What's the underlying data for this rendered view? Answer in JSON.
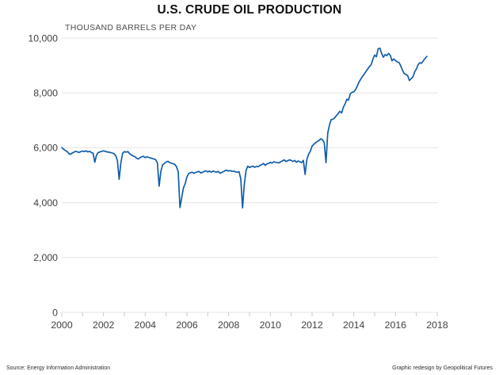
{
  "title": "U.S. CRUDE OIL PRODUCTION",
  "footer": {
    "source": "Source: Energy Information Administration",
    "credit": "Graphic redesign by Geopolitical Futures"
  },
  "chart_data": {
    "type": "line",
    "title": "U.S. CRUDE OIL PRODUCTION",
    "ylabel": "THOUSAND BARRELS PER DAY",
    "xlabel": "",
    "xlim": [
      2000,
      2018
    ],
    "ylim": [
      0,
      10000
    ],
    "grid": "horizontal",
    "legend_position": "none",
    "line_color": "#0F5DAB",
    "grid_color": "#e4e4e4",
    "tick_color": "#c9c9c9",
    "label_color": "#404040",
    "x_tick_labels": [
      {
        "year": 2000,
        "label": "2000"
      },
      {
        "year": 2002,
        "label": "2002"
      },
      {
        "year": 2004,
        "label": "2004"
      },
      {
        "year": 2006,
        "label": "2006"
      },
      {
        "year": 2008,
        "label": "2008"
      },
      {
        "year": 2010,
        "label": "2010"
      },
      {
        "year": 2012,
        "label": "2012"
      },
      {
        "year": 2014,
        "label": "2014"
      },
      {
        "year": 2016,
        "label": "2016"
      },
      {
        "year": 2018,
        "label": "2018"
      }
    ],
    "x_minor_tick_years": [
      2000,
      2001,
      2002,
      2003,
      2004,
      2005,
      2006,
      2007,
      2008,
      2009,
      2010,
      2011,
      2012,
      2013,
      2014,
      2015,
      2016,
      2017,
      2018
    ],
    "y_ticks": [
      {
        "value": 0,
        "label": "0"
      },
      {
        "value": 2000,
        "label": "2,000"
      },
      {
        "value": 4000,
        "label": "4,000"
      },
      {
        "value": 6000,
        "label": "6,000"
      },
      {
        "value": 8000,
        "label": "8,000"
      },
      {
        "value": 10000,
        "label": "10,000"
      }
    ],
    "x_start_year": 2000,
    "x_step_months": 1,
    "series": [
      {
        "name": "U.S. crude oil production (thousand barrels per day, monthly, Jan 2000 - Jul 2017)",
        "values": [
          6010,
          5950,
          5900,
          5870,
          5790,
          5760,
          5810,
          5840,
          5870,
          5850,
          5830,
          5860,
          5880,
          5860,
          5890,
          5850,
          5870,
          5830,
          5800,
          5470,
          5740,
          5830,
          5850,
          5870,
          5890,
          5870,
          5850,
          5840,
          5830,
          5810,
          5790,
          5720,
          5540,
          4850,
          5450,
          5800,
          5860,
          5840,
          5860,
          5790,
          5740,
          5700,
          5680,
          5620,
          5590,
          5640,
          5670,
          5690,
          5640,
          5670,
          5650,
          5630,
          5610,
          5590,
          5570,
          5450,
          4600,
          5140,
          5380,
          5430,
          5480,
          5510,
          5460,
          5440,
          5420,
          5400,
          5310,
          5130,
          3820,
          4180,
          4540,
          4690,
          4940,
          5060,
          5090,
          5110,
          5070,
          5100,
          5120,
          5140,
          5080,
          5110,
          5140,
          5160,
          5120,
          5150,
          5110,
          5150,
          5130,
          5110,
          5140,
          5070,
          5100,
          5130,
          5170,
          5180,
          5150,
          5170,
          5140,
          5150,
          5120,
          5110,
          5130,
          4870,
          3810,
          4650,
          5170,
          5330,
          5280,
          5310,
          5330,
          5290,
          5320,
          5310,
          5360,
          5380,
          5430,
          5360,
          5410,
          5430,
          5470,
          5440,
          5490,
          5470,
          5460,
          5450,
          5490,
          5520,
          5560,
          5500,
          5530,
          5560,
          5540,
          5500,
          5540,
          5470,
          5520,
          5490,
          5460,
          5540,
          5030,
          5580,
          5760,
          5880,
          6060,
          6130,
          6180,
          6230,
          6270,
          6330,
          6290,
          6180,
          5460,
          6540,
          6820,
          7030,
          7040,
          7090,
          7170,
          7250,
          7330,
          7270,
          7480,
          7600,
          7770,
          7740,
          7970,
          8020,
          8040,
          8120,
          8250,
          8400,
          8500,
          8600,
          8680,
          8780,
          8870,
          8960,
          9030,
          9230,
          9380,
          9320,
          9610,
          9630,
          9440,
          9300,
          9400,
          9360,
          9440,
          9370,
          9170,
          9240,
          9180,
          9130,
          9110,
          8990,
          8830,
          8700,
          8680,
          8630,
          8450,
          8520,
          8580,
          8770,
          8870,
          9030,
          9100,
          9080,
          9170,
          9250,
          9330
        ]
      }
    ]
  }
}
